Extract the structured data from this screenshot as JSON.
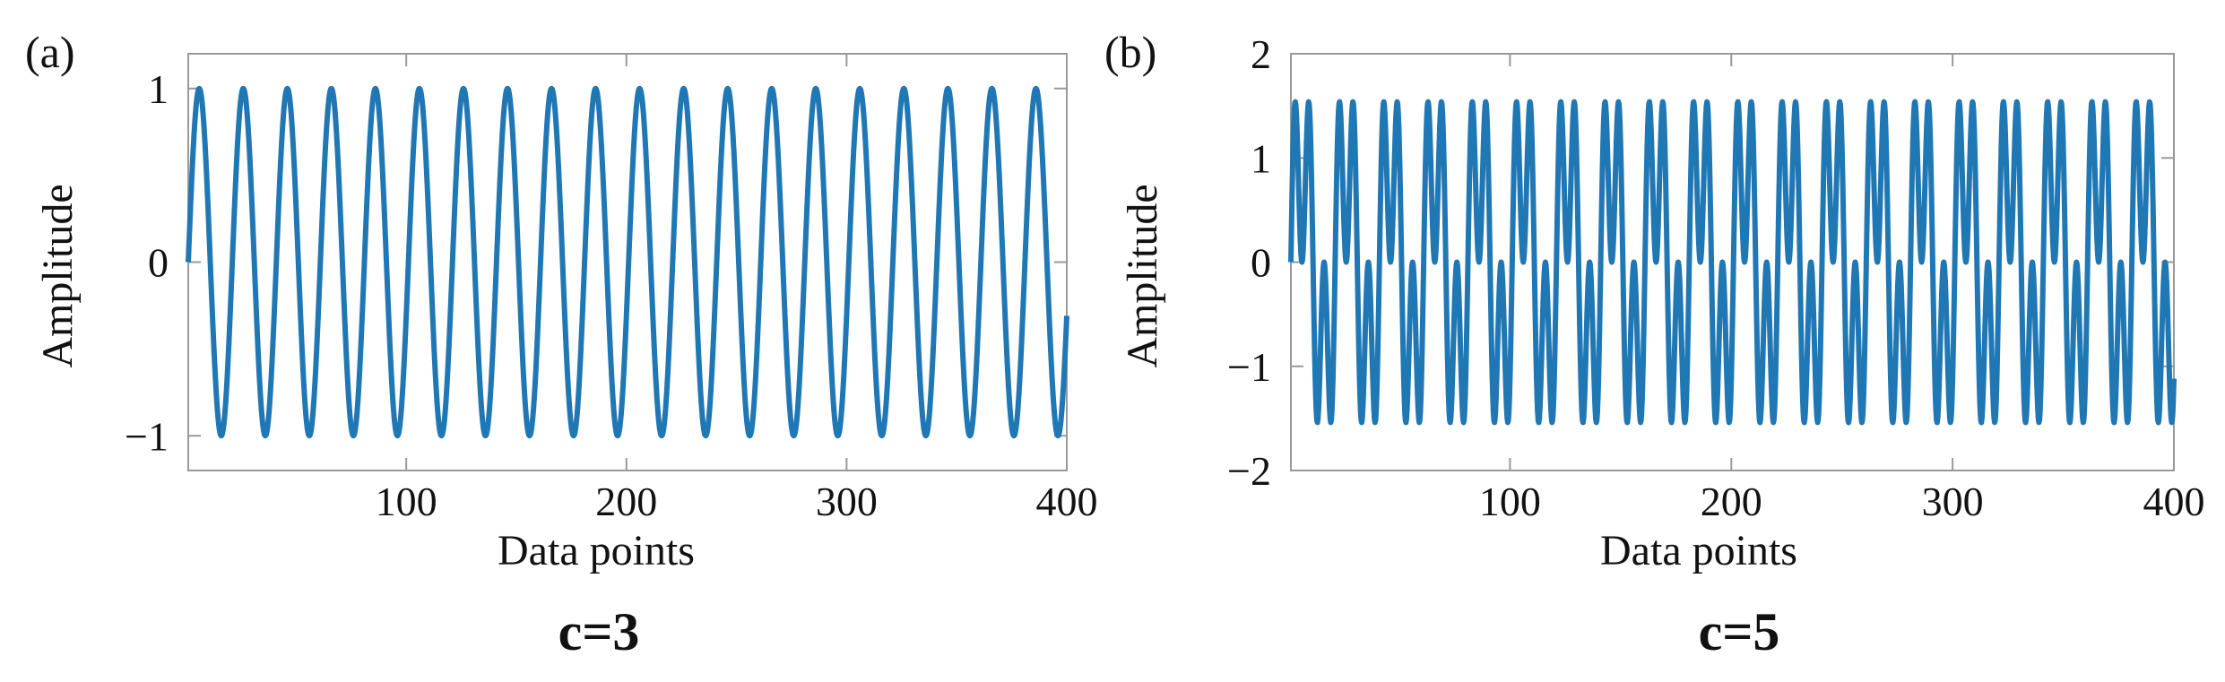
{
  "chart_data": [
    {
      "type": "line",
      "panel_label": "(a)",
      "caption": "c=3",
      "xlabel": "Data points",
      "ylabel": "Amplitude",
      "xlim": [
        1,
        400
      ],
      "ylim": [
        -1.2,
        1.2
      ],
      "xticks": [
        100,
        200,
        300,
        400
      ],
      "yticks": [
        -1,
        0,
        1
      ],
      "xtick_labels": [
        "100",
        "200",
        "300",
        "400"
      ],
      "ytick_labels": [
        "−1",
        "0",
        "1"
      ],
      "grid": false,
      "series": [
        {
          "function": "sin(2*pi*t/20)",
          "components": [
            {
              "amplitude": 1.0,
              "period": 20
            }
          ],
          "x_start": 1,
          "x_end": 400,
          "color": "#1f77b4"
        }
      ]
    },
    {
      "type": "line",
      "panel_label": "(b)",
      "caption": "c=5",
      "xlabel": "Data points",
      "ylabel": "Amplitude",
      "xlim": [
        1,
        400
      ],
      "ylim": [
        -2,
        2
      ],
      "xticks": [
        100,
        200,
        300,
        400
      ],
      "yticks": [
        -2,
        -1,
        0,
        1,
        2
      ],
      "xtick_labels": [
        "100",
        "200",
        "300",
        "400"
      ],
      "ytick_labels": [
        "−2",
        "−1",
        "0",
        "1",
        "2"
      ],
      "grid": false,
      "series": [
        {
          "function": "sin(2*pi*t/20) + sin(6*pi*t/20)",
          "components": [
            {
              "amplitude": 1.0,
              "period": 20
            },
            {
              "amplitude": 1.0,
              "period": 6.6667
            }
          ],
          "x_start": 1,
          "x_end": 400,
          "color": "#1f77b4"
        }
      ]
    }
  ]
}
